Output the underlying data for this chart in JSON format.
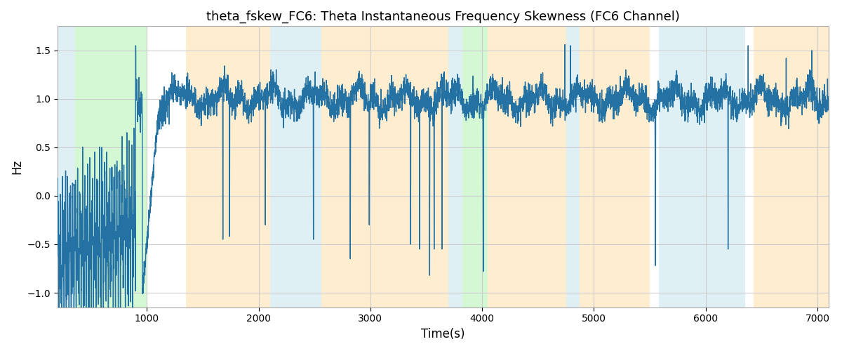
{
  "title": "theta_fskew_FC6: Theta Instantaneous Frequency Skewness (FC6 Channel)",
  "xlabel": "Time(s)",
  "ylabel": "Hz",
  "xlim": [
    200,
    7100
  ],
  "ylim": [
    -1.15,
    1.75
  ],
  "line_color": "#2472a4",
  "line_width": 1.0,
  "bg_color": "#ffffff",
  "grid_color": "#cccccc",
  "bands": [
    {
      "xmin": 200,
      "xmax": 355,
      "color": "#add8e6",
      "alpha": 0.38
    },
    {
      "xmin": 355,
      "xmax": 1000,
      "color": "#90ee90",
      "alpha": 0.38
    },
    {
      "xmin": 1350,
      "xmax": 2100,
      "color": "#ffdca0",
      "alpha": 0.5
    },
    {
      "xmin": 2100,
      "xmax": 2560,
      "color": "#add8e6",
      "alpha": 0.38
    },
    {
      "xmin": 2560,
      "xmax": 3700,
      "color": "#ffdca0",
      "alpha": 0.5
    },
    {
      "xmin": 3700,
      "xmax": 3820,
      "color": "#add8e6",
      "alpha": 0.38
    },
    {
      "xmin": 3820,
      "xmax": 4050,
      "color": "#90ee90",
      "alpha": 0.38
    },
    {
      "xmin": 4050,
      "xmax": 4750,
      "color": "#ffdca0",
      "alpha": 0.5
    },
    {
      "xmin": 4750,
      "xmax": 4870,
      "color": "#add8e6",
      "alpha": 0.38
    },
    {
      "xmin": 4870,
      "xmax": 5500,
      "color": "#ffdca0",
      "alpha": 0.5
    },
    {
      "xmin": 5580,
      "xmax": 6350,
      "color": "#add8e6",
      "alpha": 0.38
    },
    {
      "xmin": 6430,
      "xmax": 7100,
      "color": "#ffdca0",
      "alpha": 0.5
    }
  ],
  "xticks": [
    1000,
    2000,
    3000,
    4000,
    5000,
    6000,
    7000
  ],
  "yticks": [
    -1.0,
    -0.5,
    0.0,
    0.5,
    1.0,
    1.5
  ],
  "figsize": [
    12,
    5
  ],
  "dpi": 100,
  "seed": 42
}
